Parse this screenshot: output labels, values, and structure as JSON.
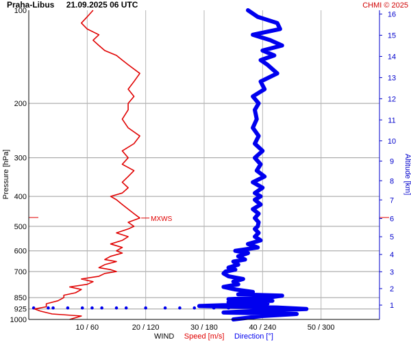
{
  "header": {
    "station": "Praha-Libus",
    "datetime": "21.09.2025 06 UTC",
    "credit": "CHMI © 2025"
  },
  "axes": {
    "pressure_label": "Pressure [hPa]",
    "altitude_label": "Altitude [km]",
    "wind_label": "WIND",
    "speed_label": "Speed [m/s]",
    "direction_label": "Direction [°]",
    "mxws_label": "MXWS"
  },
  "colors": {
    "speed": "#e00000",
    "direction": "#0000ee",
    "grid": "#999999",
    "altitude_axis": "#0000cc"
  },
  "chart_data": {
    "type": "line",
    "title": "Praha-Libus    21.09.2025 06 UTC",
    "y_scale": "log",
    "y_inverted": true,
    "ylim_hPa": [
      1000,
      100
    ],
    "y_ticks_hPa": [
      100,
      200,
      300,
      400,
      500,
      600,
      700,
      850,
      925,
      1000
    ],
    "xlim_speed_ms": [
      0,
      60
    ],
    "xlim_direction_deg": [
      0,
      360
    ],
    "x_ticks": [
      "10 / 60",
      "20 / 120",
      "30 / 180",
      "40 / 240",
      "50 / 300"
    ],
    "x_ticks_speed_ms": [
      10,
      20,
      30,
      40,
      50
    ],
    "altitude_ticks_km": [
      1,
      2,
      3,
      4,
      5,
      6,
      7,
      8,
      9,
      10,
      11,
      12,
      13,
      14,
      15,
      16
    ],
    "mxws_hPa": 470,
    "grid": true,
    "series": [
      {
        "name": "Speed [m/s]",
        "color": "#e00000",
        "x_unit": "m/s",
        "points": [
          [
            1000,
            7
          ],
          [
            975,
            9
          ],
          [
            960,
            4
          ],
          [
            940,
            2
          ],
          [
            925,
            1
          ],
          [
            910,
            3
          ],
          [
            890,
            3
          ],
          [
            870,
            5
          ],
          [
            850,
            6
          ],
          [
            835,
            6
          ],
          [
            820,
            8
          ],
          [
            800,
            9
          ],
          [
            785,
            7
          ],
          [
            770,
            10
          ],
          [
            755,
            11
          ],
          [
            740,
            9
          ],
          [
            725,
            12
          ],
          [
            710,
            13
          ],
          [
            700,
            15
          ],
          [
            690,
            14
          ],
          [
            680,
            12
          ],
          [
            665,
            13
          ],
          [
            650,
            15
          ],
          [
            640,
            13
          ],
          [
            625,
            14
          ],
          [
            610,
            16
          ],
          [
            600,
            15
          ],
          [
            585,
            16
          ],
          [
            570,
            14
          ],
          [
            555,
            16
          ],
          [
            540,
            17
          ],
          [
            525,
            15
          ],
          [
            510,
            17
          ],
          [
            500,
            18
          ],
          [
            485,
            17
          ],
          [
            470,
            19
          ],
          [
            455,
            18
          ],
          [
            440,
            17
          ],
          [
            425,
            16
          ],
          [
            410,
            15
          ],
          [
            400,
            14
          ],
          [
            390,
            16
          ],
          [
            375,
            17
          ],
          [
            360,
            16
          ],
          [
            345,
            17
          ],
          [
            330,
            18
          ],
          [
            315,
            16
          ],
          [
            300,
            17
          ],
          [
            285,
            16
          ],
          [
            270,
            18
          ],
          [
            255,
            19
          ],
          [
            240,
            17
          ],
          [
            225,
            16
          ],
          [
            210,
            17
          ],
          [
            200,
            17
          ],
          [
            190,
            18
          ],
          [
            180,
            17
          ],
          [
            170,
            18
          ],
          [
            160,
            19
          ],
          [
            150,
            17
          ],
          [
            145,
            16
          ],
          [
            140,
            15
          ],
          [
            135,
            13
          ],
          [
            130,
            12
          ],
          [
            125,
            11
          ],
          [
            120,
            12
          ],
          [
            115,
            10
          ],
          [
            110,
            9
          ],
          [
            105,
            10
          ],
          [
            100,
            11
          ]
        ]
      },
      {
        "name": "Direction [°]",
        "color": "#0000ee",
        "x_unit": "deg",
        "points": [
          [
            1000,
            210
          ],
          [
            975,
            240
          ],
          [
            960,
            275
          ],
          [
            950,
            200
          ],
          [
            940,
            230
          ],
          [
            925,
            285
          ],
          [
            915,
            255
          ],
          [
            905,
            175
          ],
          [
            890,
            245
          ],
          [
            880,
            205
          ],
          [
            870,
            250
          ],
          [
            860,
            205
          ],
          [
            850,
            245
          ],
          [
            838,
            260
          ],
          [
            830,
            215
          ],
          [
            815,
            230
          ],
          [
            800,
            212
          ],
          [
            785,
            200
          ],
          [
            770,
            215
          ],
          [
            755,
            210
          ],
          [
            740,
            220
          ],
          [
            725,
            205
          ],
          [
            710,
            200
          ],
          [
            700,
            202
          ],
          [
            690,
            212
          ],
          [
            680,
            205
          ],
          [
            665,
            215
          ],
          [
            650,
            210
          ],
          [
            640,
            222
          ],
          [
            625,
            215
          ],
          [
            610,
            225
          ],
          [
            600,
            212
          ],
          [
            585,
            235
          ],
          [
            570,
            225
          ],
          [
            555,
            238
          ],
          [
            540,
            232
          ],
          [
            525,
            236
          ],
          [
            510,
            232
          ],
          [
            500,
            235
          ],
          [
            485,
            236
          ],
          [
            470,
            232
          ],
          [
            455,
            236
          ],
          [
            440,
            230
          ],
          [
            425,
            238
          ],
          [
            410,
            232
          ],
          [
            400,
            238
          ],
          [
            390,
            232
          ],
          [
            375,
            240
          ],
          [
            360,
            230
          ],
          [
            345,
            242
          ],
          [
            330,
            234
          ],
          [
            315,
            238
          ],
          [
            300,
            232
          ],
          [
            285,
            240
          ],
          [
            270,
            232
          ],
          [
            255,
            236
          ],
          [
            240,
            230
          ],
          [
            225,
            234
          ],
          [
            210,
            232
          ],
          [
            200,
            236
          ],
          [
            190,
            230
          ],
          [
            180,
            242
          ],
          [
            170,
            238
          ],
          [
            160,
            255
          ],
          [
            150,
            245
          ],
          [
            145,
            238
          ],
          [
            140,
            252
          ],
          [
            135,
            240
          ],
          [
            130,
            260
          ],
          [
            125,
            248
          ],
          [
            120,
            230
          ],
          [
            115,
            258
          ],
          [
            110,
            255
          ],
          [
            105,
            235
          ],
          [
            100,
            225
          ]
        ]
      }
    ]
  }
}
